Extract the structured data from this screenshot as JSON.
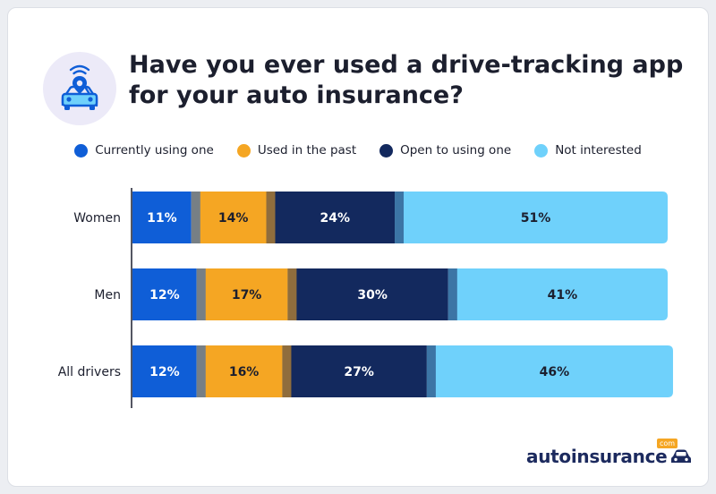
{
  "title_line1": "Have you ever used a drive-tracking app",
  "title_line2": "for your auto insurance?",
  "legend": [
    {
      "label": "Currently using one",
      "color": "#0f5ed7"
    },
    {
      "label": "Used in the past",
      "color": "#f5a623"
    },
    {
      "label": "Open to using one",
      "color": "#13295e"
    },
    {
      "label": "Not interested",
      "color": "#6fd1fb"
    }
  ],
  "brand": {
    "name": "autoinsurance",
    "suffix": "com"
  },
  "chart_data": {
    "type": "bar",
    "orientation": "horizontal",
    "stacked": true,
    "categories": [
      "Women",
      "Men",
      "All drivers"
    ],
    "series": [
      {
        "name": "Currently using one",
        "values": [
          11,
          12,
          12
        ],
        "color": "#0f5ed7",
        "label_color": "#ffffff"
      },
      {
        "name": "Used in the past",
        "values": [
          14,
          17,
          16
        ],
        "color": "#f5a623",
        "label_color": "#1c1f2e"
      },
      {
        "name": "Open to using one",
        "values": [
          24,
          30,
          27
        ],
        "color": "#13295e",
        "label_color": "#ffffff"
      },
      {
        "name": "Not interested",
        "values": [
          51,
          41,
          46
        ],
        "color": "#6fd1fb",
        "label_color": "#1c1f2e"
      }
    ],
    "value_suffix": "%",
    "xlim": [
      0,
      100
    ],
    "legend_position": "top"
  }
}
